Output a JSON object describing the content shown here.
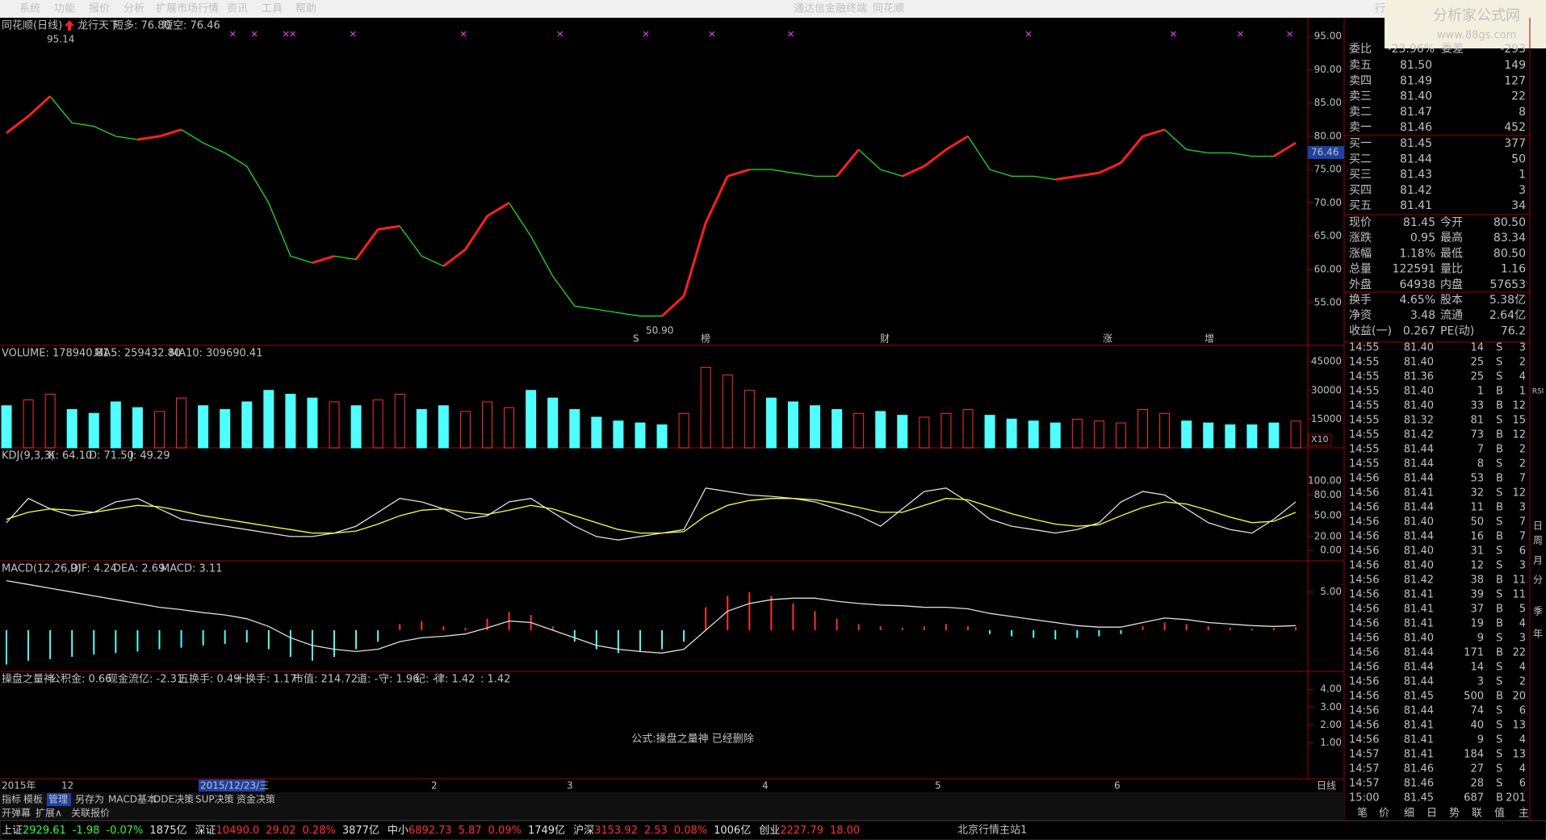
{
  "menu": {
    "items": [
      "系统",
      "功能",
      "报价",
      "分析",
      "扩展市场行情",
      "资讯",
      "工具",
      "帮助"
    ],
    "center": [
      "通达信金融终端",
      "同花顺"
    ],
    "right": "行"
  },
  "watermark": {
    "title": "分析家公式网",
    "url": "www.88gs.com"
  },
  "main_chart": {
    "header": [
      {
        "text": "同花顺(日线)",
        "color": "#c0c0c0"
      },
      {
        "text": "龙行天下",
        "color": "#c0c0c0"
      },
      {
        "text": "短多: 76.80",
        "color": "#ff3030"
      },
      {
        "text": "短空: 76.46",
        "color": "#30ff30"
      }
    ],
    "yticks": [
      {
        "value": 95,
        "label": "95.00"
      },
      {
        "value": 90,
        "label": "90.00"
      },
      {
        "value": 85,
        "label": "85.00"
      },
      {
        "value": 80,
        "label": "80.00"
      },
      {
        "value": 75,
        "label": "75.00"
      },
      {
        "value": 70,
        "label": "70.00"
      },
      {
        "value": 65,
        "label": "65.00"
      },
      {
        "value": 60,
        "label": "60.00"
      },
      {
        "value": 55,
        "label": "55.00"
      }
    ],
    "ylim": [
      48.6,
      97.8
    ],
    "high_label": "95.14",
    "low_label": "50.90",
    "current_price": "76.46",
    "events": [
      "S",
      "榜",
      "财",
      "涨",
      "增"
    ],
    "values": [
      80.5,
      83,
      86,
      82,
      81.5,
      80,
      79.5,
      80,
      81,
      79,
      77.5,
      75.5,
      70,
      62,
      61,
      62,
      61.5,
      66,
      66.5,
      62,
      60.5,
      63,
      68,
      70,
      65,
      59,
      54.5,
      54,
      53.5,
      53,
      53,
      56,
      67,
      74,
      75,
      75,
      74.5,
      74,
      74,
      78,
      75,
      74,
      75.5,
      78,
      80,
      75,
      74,
      74,
      73.5,
      74,
      74.5,
      76,
      80,
      81,
      78,
      77.5,
      77.5,
      77,
      77,
      79
    ]
  },
  "volume_chart": {
    "header": [
      {
        "text": "VOLUME: 178940.81",
        "color": "#e0e0e0"
      },
      {
        "text": "MA5: 259432.80",
        "color": "#e0e0e0"
      },
      {
        "text": "MA10: 309690.41",
        "color": "#ffff40"
      }
    ],
    "yticks": [
      45000,
      30000,
      15000
    ],
    "ylim": [
      0,
      53500
    ],
    "unit": "X10",
    "values": [
      22000,
      25000,
      28000,
      20000,
      18000,
      24000,
      21000,
      19000,
      26000,
      22000,
      20000,
      24000,
      30000,
      28000,
      26000,
      24000,
      22000,
      25000,
      28000,
      20000,
      22000,
      19000,
      24000,
      21000,
      30000,
      26000,
      20000,
      16000,
      14000,
      13000,
      12000,
      18000,
      42000,
      38000,
      30000,
      26000,
      24000,
      22000,
      20000,
      18000,
      19000,
      17000,
      16000,
      18000,
      20000,
      17000,
      15000,
      14000,
      13000,
      15000,
      14000,
      13000,
      20000,
      18000,
      14000,
      13000,
      12000,
      12000,
      13000,
      14000
    ]
  },
  "kdj_chart": {
    "header": [
      {
        "text": "KDJ(9,3,3)",
        "color": "#e0e0e0"
      },
      {
        "text": "K: 64.10",
        "color": "#e0e0e0"
      },
      {
        "text": "D: 71.50",
        "color": "#ffff40"
      },
      {
        "text": "J: 49.29",
        "color": "#ff40ff"
      }
    ],
    "yticks": [
      {
        "value": 100,
        "label": "100.00"
      },
      {
        "value": 80,
        "label": "80.00"
      },
      {
        "value": 50,
        "label": "50.00"
      },
      {
        "value": 20,
        "label": "20.00"
      },
      {
        "value": 0,
        "label": "0.00"
      }
    ],
    "ylim": [
      -15,
      148
    ],
    "series": [
      {
        "name": "K",
        "color": "#e0e0e0",
        "values": [
          40,
          75,
          60,
          50,
          55,
          70,
          75,
          60,
          45,
          40,
          35,
          30,
          25,
          20,
          20,
          25,
          35,
          55,
          75,
          70,
          60,
          45,
          50,
          70,
          75,
          55,
          35,
          20,
          15,
          20,
          25,
          30,
          90,
          85,
          80,
          78,
          75,
          70,
          60,
          50,
          35,
          60,
          85,
          90,
          70,
          45,
          35,
          30,
          25,
          30,
          40,
          70,
          85,
          80,
          60,
          40,
          30,
          25,
          45,
          70
        ]
      },
      {
        "name": "D",
        "color": "#ffff40",
        "values": [
          45,
          55,
          60,
          58,
          55,
          60,
          65,
          63,
          57,
          50,
          45,
          40,
          35,
          30,
          25,
          25,
          28,
          38,
          50,
          58,
          60,
          55,
          52,
          58,
          65,
          60,
          50,
          40,
          30,
          25,
          25,
          27,
          50,
          65,
          72,
          75,
          75,
          73,
          68,
          62,
          55,
          55,
          65,
          75,
          73,
          63,
          53,
          45,
          38,
          35,
          37,
          50,
          62,
          70,
          67,
          58,
          48,
          40,
          42,
          55
        ]
      }
    ]
  },
  "macd_chart": {
    "header": [
      {
        "text": "MACD(12,26,9)",
        "color": "#e0e0e0"
      },
      {
        "text": "DIF: 4.24",
        "color": "#e0e0e0"
      },
      {
        "text": "DEA: 2.69",
        "color": "#ffff40"
      },
      {
        "text": "MACD: 3.11",
        "color": "#ff40ff"
      }
    ],
    "yticks": [
      {
        "value": 5,
        "label": "5.00"
      }
    ],
    "ylim": [
      -5.4,
      9.1
    ],
    "macd": [
      -4.5,
      -4,
      -3.8,
      -3.5,
      -3.2,
      -3,
      -2.8,
      -2.5,
      -2.3,
      -2,
      -1.8,
      -1.6,
      -2.5,
      -3.5,
      -4,
      -3.5,
      -2.5,
      -1.5,
      0.8,
      1.2,
      0.5,
      0.3,
      1.5,
      2.4,
      2,
      0.5,
      -1.5,
      -2.5,
      -3,
      -2.8,
      -2.5,
      -1.5,
      3,
      4.5,
      5,
      4.5,
      3.5,
      2.5,
      1.5,
      0.8,
      0.5,
      0.3,
      0.5,
      0.8,
      0.5,
      -0.5,
      -0.8,
      -1,
      -1.2,
      -1,
      -0.8,
      -0.5,
      0.5,
      1,
      0.8,
      0.5,
      0.3,
      0.2,
      0.3,
      0.4
    ],
    "dif": [
      6.5,
      6,
      5.5,
      5,
      4.5,
      4,
      3.5,
      3,
      2.7,
      2.3,
      2,
      1.5,
      0.5,
      -1,
      -2,
      -2.5,
      -2.8,
      -2.5,
      -1.5,
      -1,
      -0.8,
      -0.5,
      0.3,
      1.2,
      1,
      0,
      -1,
      -2,
      -2.5,
      -2.8,
      -3,
      -2.5,
      0,
      2.5,
      3.5,
      4,
      4.2,
      4.2,
      3.8,
      3.5,
      3.3,
      3.2,
      3,
      3,
      2.8,
      2.2,
      1.8,
      1.4,
      1,
      0.6,
      0.4,
      0.4,
      1,
      1.6,
      1.4,
      1,
      0.8,
      0.6,
      0.5,
      0.6
    ]
  },
  "formula_panel": {
    "header": [
      {
        "text": "操盘之量神",
        "color": "#e0e0e0"
      },
      {
        "text": "公积金: 0.66",
        "color": "#ff3030"
      },
      {
        "text": "现金流亿: -2.31",
        "color": "#e0e0e0"
      },
      {
        "text": "五换手: 0.49",
        "color": "#e0e0e0"
      },
      {
        "text": "十换手: 1.17",
        "color": "#e0e0e0"
      },
      {
        "text": "市值: 214.72",
        "color": "#ff40ff"
      },
      {
        "text": "道: -",
        "color": "#ff3030"
      },
      {
        "text": "守: 1.96",
        "color": "#6080ff"
      },
      {
        "text": "纪: -",
        "color": "#e0e0e0"
      },
      {
        "text": "律: 1.42",
        "color": "#30ff30"
      },
      {
        "text": ": 1.42",
        "color": "#40ffff"
      }
    ],
    "yticks": [
      {
        "value": 4,
        "label": "4.00"
      },
      {
        "value": 3,
        "label": "3.00"
      },
      {
        "value": 2,
        "label": "2.00"
      },
      {
        "value": 1,
        "label": "1.00"
      }
    ],
    "ylim": [
      -1,
      5
    ],
    "message": "公式:操盘之量神 已经删除"
  },
  "date_axis": [
    "2015年",
    "12",
    "2015/12/23/三",
    "2",
    "3",
    "4",
    "5",
    "6",
    "日线"
  ],
  "tabs": {
    "row1": [
      "指标",
      "模板",
      "管理",
      "另存为",
      "MACD基本",
      "DDE决策",
      "SUP决策",
      "资金决策"
    ],
    "row2": [
      "开弹幕",
      "扩展∧",
      "关联报价"
    ]
  },
  "quote": {
    "ratio": [
      "委比",
      "-23.96%",
      "委差",
      "-293"
    ],
    "sells": [
      [
        "卖五",
        "81.50",
        "149"
      ],
      [
        "卖四",
        "81.49",
        "127"
      ],
      [
        "卖三",
        "81.40",
        "22"
      ],
      [
        "卖二",
        "81.47",
        "8"
      ],
      [
        "卖一",
        "81.46",
        "452"
      ]
    ],
    "buys": [
      [
        "买一",
        "81.45",
        "377"
      ],
      [
        "买二",
        "81.44",
        "50"
      ],
      [
        "买三",
        "81.43",
        "1"
      ],
      [
        "买四",
        "81.42",
        "3"
      ],
      [
        "买五",
        "81.41",
        "34"
      ]
    ],
    "stats": [
      [
        "现价",
        "81.45",
        "今开",
        "80.50"
      ],
      [
        "涨跌",
        "0.95",
        "最高",
        "83.34"
      ],
      [
        "涨幅",
        "1.18%",
        "最低",
        "80.50"
      ],
      [
        "总量",
        "122591",
        "量比",
        "1.16"
      ],
      [
        "外盘",
        "64938",
        "内盘",
        "57653"
      ],
      [
        "换手",
        "4.65%",
        "股本",
        "5.38亿"
      ],
      [
        "净资",
        "3.48",
        "流通",
        "2.64亿"
      ],
      [
        "收益(一)",
        "0.267",
        "PE(动)",
        "76.2"
      ]
    ]
  },
  "trades": [
    [
      "14:55",
      "81.40",
      "14",
      "S",
      "3"
    ],
    [
      "14:55",
      "81.40",
      "25",
      "S",
      "2"
    ],
    [
      "14:55",
      "81.36",
      "25",
      "S",
      "4"
    ],
    [
      "14:55",
      "81.40",
      "1",
      "B",
      "1"
    ],
    [
      "14:55",
      "81.40",
      "33",
      "B",
      "12"
    ],
    [
      "14:55",
      "81.32",
      "81",
      "S",
      "15"
    ],
    [
      "14:55",
      "81.42",
      "73",
      "B",
      "12"
    ],
    [
      "14:55",
      "81.44",
      "7",
      "B",
      "2"
    ],
    [
      "14:55",
      "81.44",
      "8",
      "S",
      "2"
    ],
    [
      "14:56",
      "81.44",
      "53",
      "B",
      "7"
    ],
    [
      "14:56",
      "81.41",
      "32",
      "S",
      "12"
    ],
    [
      "14:56",
      "81.44",
      "11",
      "B",
      "3"
    ],
    [
      "14:56",
      "81.40",
      "50",
      "S",
      "7"
    ],
    [
      "14:56",
      "81.44",
      "16",
      "B",
      "7"
    ],
    [
      "14:56",
      "81.40",
      "31",
      "S",
      "6"
    ],
    [
      "14:56",
      "81.40",
      "12",
      "S",
      "3"
    ],
    [
      "14:56",
      "81.42",
      "38",
      "B",
      "11"
    ],
    [
      "14:56",
      "81.41",
      "39",
      "S",
      "11"
    ],
    [
      "14:56",
      "81.41",
      "37",
      "B",
      "5"
    ],
    [
      "14:56",
      "81.41",
      "19",
      "B",
      "4"
    ],
    [
      "14:56",
      "81.40",
      "9",
      "S",
      "3"
    ],
    [
      "14:56",
      "81.44",
      "171",
      "B",
      "22"
    ],
    [
      "14:56",
      "81.44",
      "14",
      "S",
      "4"
    ],
    [
      "14:56",
      "81.44",
      "3",
      "S",
      "2"
    ],
    [
      "14:56",
      "81.45",
      "500",
      "B",
      "20"
    ],
    [
      "14:56",
      "81.44",
      "74",
      "S",
      "6"
    ],
    [
      "14:56",
      "81.41",
      "40",
      "S",
      "13"
    ],
    [
      "14:56",
      "81.41",
      "9",
      "S",
      "4"
    ],
    [
      "14:57",
      "81.41",
      "184",
      "S",
      "13"
    ],
    [
      "14:57",
      "81.46",
      "27",
      "S",
      "4"
    ],
    [
      "14:57",
      "81.46",
      "28",
      "S",
      "6"
    ],
    [
      "15:00",
      "81.45",
      "687",
      "B",
      "201"
    ]
  ],
  "side_tabs": [
    "笔",
    "价",
    "细",
    "日",
    "势",
    "联",
    "值",
    "主"
  ],
  "toolbar": [
    "RSI",
    "日",
    "周",
    "月",
    "分",
    "季",
    "年"
  ],
  "status": {
    "indices": [
      {
        "name": "上证",
        "value": "2929.61",
        "change": "-1.98",
        "pct": "-0.07%",
        "amount": "1875亿"
      },
      {
        "name": "深证",
        "value": "10490.0",
        "change": "29.02",
        "pct": "0.28%",
        "amount": "3877亿"
      },
      {
        "name": "中小",
        "value": "6892.73",
        "change": "5.87",
        "pct": "0.09%",
        "amount": "1749亿"
      },
      {
        "name": "沪深",
        "value": "3153.92",
        "change": "2.53",
        "pct": "0.08%",
        "amount": "1006亿"
      },
      {
        "name": "创业",
        "value": "2227.79",
        "change": "18.00"
      }
    ],
    "server": "北京行情主站1"
  }
}
